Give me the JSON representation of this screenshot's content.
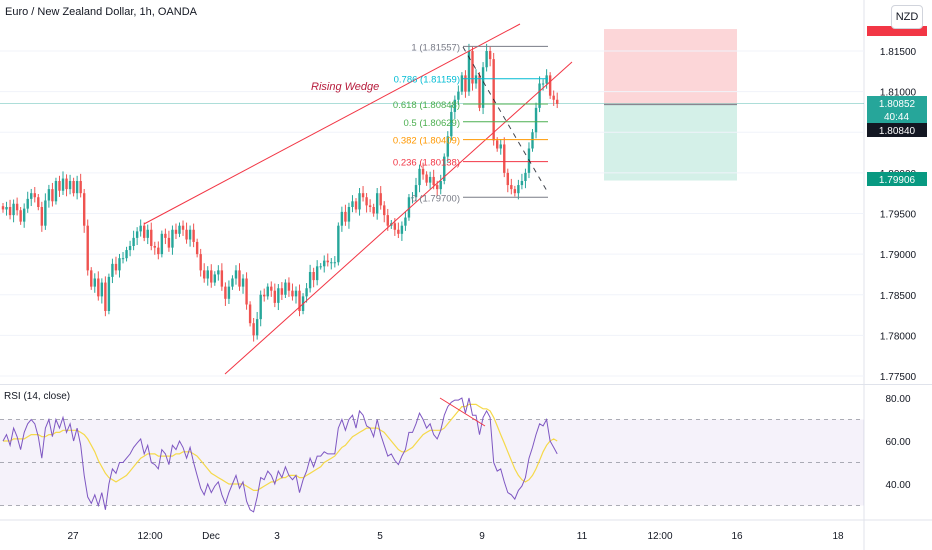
{
  "title": "Euro / New Zealand Dollar, 1h, OANDA",
  "currency_button": "NZD",
  "rsi_label": "RSI (14, close)",
  "pattern_label": "Rising Wedge",
  "price_tags": {
    "last": "1.80852",
    "countdown": "40:44",
    "entry": "1.80840",
    "target": "1.79906"
  },
  "colors": {
    "up": "#26a69a",
    "down": "#ef5350",
    "wedge": "#f23645",
    "rsi": "#7e57c2",
    "rsi_ma": "#f5d94a",
    "stop_zone": "#fccfd1",
    "target_zone": "#cfeee6",
    "target_tag": "#089981",
    "last_tag": "#26a69a",
    "entry_tag": "#131722",
    "stop_tag": "#f23645"
  },
  "chart_data": [
    {
      "type": "candlestick",
      "title": "Euro / New Zealand Dollar, 1h, OANDA",
      "y_ticks": [
        "1.81500",
        "1.81000",
        "1.80500",
        "1.80000",
        "1.79500",
        "1.79000",
        "1.78500",
        "1.78000",
        "1.77500"
      ],
      "y_tick_values": [
        1.815,
        1.81,
        1.805,
        1.8,
        1.795,
        1.79,
        1.785,
        1.78,
        1.775
      ],
      "ylim": [
        1.7742,
        1.8189
      ],
      "x_ticks": [
        "27",
        "12:00",
        "Dec",
        "3",
        "5",
        "9",
        "11",
        "12:00",
        "16",
        "18"
      ],
      "annotations": [
        "Rising Wedge"
      ],
      "fib_levels": [
        {
          "label": "1 (1.81557)",
          "value": 1.81557,
          "color": "#787b86"
        },
        {
          "label": "0.786 (1.81159)",
          "value": 1.81159,
          "color": "#00bcd4"
        },
        {
          "label": "0.618 (1.80848)",
          "value": 1.80848,
          "color": "#4caf50"
        },
        {
          "label": "0.5 (1.80629)",
          "value": 1.80629,
          "color": "#4caf50"
        },
        {
          "label": "0.382 (1.80409)",
          "value": 1.80409,
          "color": "#ff9800"
        },
        {
          "label": "0.236 (1.80138)",
          "value": 1.80138,
          "color": "#f23645"
        },
        {
          "label": "0 (1.79700)",
          "value": 1.797,
          "color": "#787b86"
        }
      ],
      "position": {
        "entry": 1.8084,
        "stop": 1.8177,
        "target": 1.79906
      },
      "last_price": 1.80852,
      "closes": [
        1.7955,
        1.7958,
        1.7948,
        1.7962,
        1.7954,
        1.794,
        1.7956,
        1.7968,
        1.7975,
        1.797,
        1.7958,
        1.7935,
        1.7966,
        1.798,
        1.7965,
        1.799,
        1.7978,
        1.7993,
        1.798,
        1.799,
        1.7975,
        1.799,
        1.7975,
        1.7935,
        1.788,
        1.786,
        1.787,
        1.7848,
        1.7865,
        1.783,
        1.7872,
        1.7888,
        1.788,
        1.7895,
        1.7895,
        1.7905,
        1.791,
        1.792,
        1.7928,
        1.7935,
        1.792,
        1.793,
        1.791,
        1.7908,
        1.79,
        1.7925,
        1.792,
        1.7908,
        1.793,
        1.7925,
        1.7935,
        1.793,
        1.7918,
        1.793,
        1.7915,
        1.79,
        1.788,
        1.787,
        1.788,
        1.7865,
        1.7875,
        1.788,
        1.786,
        1.7845,
        1.786,
        1.787,
        1.788,
        1.786,
        1.787,
        1.7838,
        1.7815,
        1.78,
        1.782,
        1.785,
        1.7848,
        1.786,
        1.7855,
        1.784,
        1.7858,
        1.785,
        1.7865,
        1.7855,
        1.7848,
        1.7855,
        1.783,
        1.7848,
        1.7858,
        1.7878,
        1.7868,
        1.7885,
        1.7885,
        1.7892,
        1.789,
        1.789,
        1.789,
        1.7935,
        1.7952,
        1.794,
        1.7958,
        1.7965,
        1.7955,
        1.7975,
        1.797,
        1.796,
        1.7958,
        1.795,
        1.7975,
        1.796,
        1.7948,
        1.7935,
        1.7938,
        1.793,
        1.7925,
        1.7935,
        1.7945,
        1.797,
        1.797,
        1.7985,
        1.8005,
        1.7998,
        1.7988,
        1.7995,
        1.7985,
        1.798,
        1.799,
        1.802,
        1.8045,
        1.8075,
        1.809,
        1.81,
        1.812,
        1.81,
        1.815,
        1.811,
        1.812,
        1.808,
        1.813,
        1.815,
        1.814,
        1.804,
        1.803,
        1.8035,
        1.8,
        1.7985,
        1.798,
        1.7975,
        1.7985,
        1.799,
        1.8,
        1.803,
        1.805,
        1.808,
        1.811,
        1.811,
        1.812,
        1.8095,
        1.809,
        1.8085
      ],
      "note": "closes are approximate hourly closing prices read against the price axis"
    },
    {
      "type": "line",
      "title": "RSI (14, close)",
      "y_ticks": [
        "80.00",
        "60.00",
        "40.00"
      ],
      "y_tick_values": [
        80,
        60,
        40
      ],
      "ylim": [
        27,
        86
      ],
      "bands": [
        70,
        50,
        30
      ],
      "series": [
        {
          "values": [
            60,
            63,
            58,
            66,
            62,
            56,
            64,
            68,
            70,
            68,
            62,
            52,
            66,
            70,
            62,
            70,
            66,
            71,
            64,
            68,
            60,
            66,
            58,
            44,
            34,
            31,
            35,
            30,
            36,
            28,
            40,
            47,
            45,
            50,
            50,
            52,
            54,
            57,
            59,
            61,
            54,
            58,
            50,
            49,
            47,
            56,
            54,
            49,
            58,
            56,
            60,
            57,
            52,
            57,
            50,
            44,
            38,
            35,
            40,
            36,
            39,
            41,
            35,
            31,
            36,
            40,
            44,
            38,
            41,
            32,
            28,
            27,
            34,
            43,
            42,
            46,
            44,
            40,
            46,
            43,
            48,
            44,
            42,
            44,
            36,
            42,
            46,
            52,
            48,
            53,
            53,
            55,
            54,
            54,
            54,
            66,
            70,
            65,
            70,
            72,
            66,
            74,
            72,
            67,
            66,
            62,
            70,
            63,
            58,
            53,
            54,
            51,
            49,
            53,
            56,
            64,
            64,
            68,
            73,
            70,
            66,
            68,
            63,
            61,
            65,
            72,
            76,
            78,
            79,
            79,
            80,
            73,
            80,
            72,
            72,
            63,
            71,
            74,
            71,
            50,
            46,
            47,
            41,
            36,
            35,
            33,
            37,
            39,
            43,
            52,
            57,
            63,
            68,
            67,
            70,
            60,
            57,
            54
          ]
        },
        {
          "values": [
            60,
            60,
            60,
            61,
            61,
            61,
            61,
            62,
            63,
            63,
            63,
            62,
            62,
            63,
            63,
            64,
            64,
            65,
            65,
            65,
            65,
            65,
            64,
            63,
            61,
            58,
            55,
            51,
            48,
            45,
            43,
            42,
            41,
            42,
            43,
            44,
            46,
            48,
            50,
            52,
            53,
            54,
            54,
            54,
            53,
            53,
            53,
            53,
            53,
            54,
            54,
            55,
            55,
            55,
            54,
            53,
            51,
            49,
            47,
            45,
            44,
            43,
            42,
            41,
            40,
            40,
            40,
            40,
            40,
            39,
            38,
            37,
            37,
            38,
            39,
            40,
            41,
            41,
            42,
            43,
            43,
            44,
            44,
            44,
            43,
            43,
            44,
            45,
            46,
            47,
            48,
            50,
            51,
            52,
            53,
            55,
            57,
            58,
            60,
            62,
            63,
            64,
            65,
            66,
            66,
            66,
            66,
            65,
            64,
            62,
            60,
            58,
            56,
            55,
            55,
            56,
            57,
            59,
            61,
            63,
            64,
            65,
            65,
            65,
            65,
            66,
            68,
            70,
            72,
            74,
            76,
            76,
            77,
            77,
            77,
            76,
            75,
            75,
            74,
            71,
            67,
            63,
            59,
            55,
            51,
            47,
            44,
            42,
            41,
            42,
            44,
            47,
            51,
            55,
            58,
            60,
            61,
            60
          ]
        }
      ]
    }
  ]
}
